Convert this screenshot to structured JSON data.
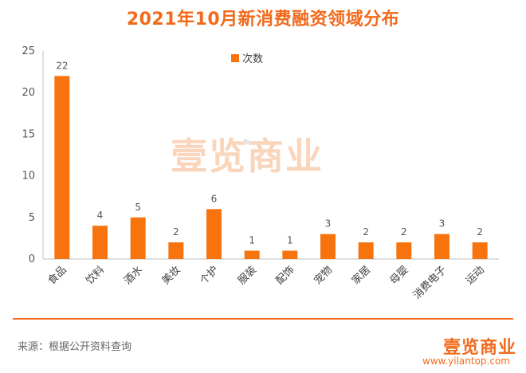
{
  "title": "2021年10月新消费融资领域分布",
  "chart_data": {
    "type": "bar",
    "title": "2021年10月新消费融资领域分布",
    "categories": [
      "食品",
      "饮料",
      "酒水",
      "美妆",
      "个护",
      "服装",
      "配饰",
      "宠物",
      "家居",
      "母婴",
      "消费电子",
      "运动"
    ],
    "series": [
      {
        "name": "次数",
        "values": [
          22,
          4,
          5,
          2,
          6,
          1,
          1,
          3,
          2,
          2,
          3,
          2
        ]
      }
    ],
    "xlabel": "",
    "ylabel": "",
    "ylim": [
      0,
      25
    ],
    "yticks": [
      0,
      5,
      10,
      15,
      20,
      25
    ],
    "grid": false,
    "legend_position": "top-center",
    "data_labels": true
  },
  "watermark": "壹览商业",
  "footer": {
    "source": "来源：根据公开资料查询",
    "logo": "壹览商业",
    "website": "www.yilantop.com"
  },
  "colors": {
    "bar": "#f7730e",
    "title": "#f26a1b",
    "divider": "#f26a1b"
  }
}
